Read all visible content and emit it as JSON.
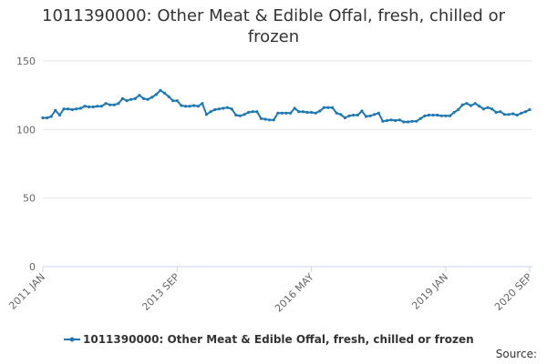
{
  "chart_data": {
    "type": "line",
    "title": "1011390000: Other Meat & Edible Offal, fresh, chilled or frozen",
    "series_name": "1011390000: Other Meat & Edible Offal, fresh, chilled or frozen",
    "source_label": "Source:",
    "x_start": "2011-01",
    "x_end": "2020-09",
    "x_ticks": [
      "2011 JAN",
      "2013 SEP",
      "2016 MAY",
      "2019 JAN",
      "2020 SEP"
    ],
    "y_ticks": [
      0,
      50,
      100,
      150
    ],
    "ylim": [
      0,
      150
    ],
    "grid": true,
    "legend_position": "bottom",
    "color": "#1f78b4",
    "series": [
      {
        "name": "1011390000: Other Meat & Edible Offal, fresh, chilled or frozen",
        "points": [
          [
            "2011-01",
            108.5
          ],
          [
            "2011-02",
            108.5
          ],
          [
            "2011-03",
            109.5
          ],
          [
            "2011-04",
            114
          ],
          [
            "2011-05",
            110.5
          ],
          [
            "2011-06",
            115
          ],
          [
            "2011-07",
            115
          ],
          [
            "2011-08",
            114.5
          ],
          [
            "2011-09",
            115
          ],
          [
            "2011-10",
            115.5
          ],
          [
            "2011-11",
            117
          ],
          [
            "2011-12",
            116.5
          ],
          [
            "2012-01",
            116.5
          ],
          [
            "2012-02",
            117
          ],
          [
            "2012-03",
            117
          ],
          [
            "2012-04",
            119
          ],
          [
            "2012-05",
            118
          ],
          [
            "2012-06",
            118
          ],
          [
            "2012-07",
            119
          ],
          [
            "2012-08",
            122.5
          ],
          [
            "2012-09",
            121
          ],
          [
            "2012-10",
            122
          ],
          [
            "2012-11",
            122.5
          ],
          [
            "2012-12",
            125
          ],
          [
            "2013-01",
            122.5
          ],
          [
            "2013-02",
            122
          ],
          [
            "2013-03",
            123.5
          ],
          [
            "2013-04",
            125.5
          ],
          [
            "2013-05",
            128.5
          ],
          [
            "2013-06",
            126.5
          ],
          [
            "2013-07",
            124
          ],
          [
            "2013-08",
            121
          ],
          [
            "2013-09",
            121
          ],
          [
            "2013-10",
            117.5
          ],
          [
            "2013-11",
            117
          ],
          [
            "2013-12",
            117
          ],
          [
            "2014-01",
            117.5
          ],
          [
            "2014-02",
            117
          ],
          [
            "2014-03",
            119
          ],
          [
            "2014-04",
            111
          ],
          [
            "2014-05",
            113
          ],
          [
            "2014-06",
            114.5
          ],
          [
            "2014-07",
            115
          ],
          [
            "2014-08",
            115.5
          ],
          [
            "2014-09",
            116
          ],
          [
            "2014-10",
            115
          ],
          [
            "2014-11",
            110.5
          ],
          [
            "2014-12",
            110
          ],
          [
            "2015-01",
            111
          ],
          [
            "2015-02",
            112.5
          ],
          [
            "2015-03",
            113
          ],
          [
            "2015-04",
            113
          ],
          [
            "2015-05",
            108
          ],
          [
            "2015-06",
            107.5
          ],
          [
            "2015-07",
            107
          ],
          [
            "2015-08",
            107
          ],
          [
            "2015-09",
            112
          ],
          [
            "2015-10",
            112
          ],
          [
            "2015-11",
            112
          ],
          [
            "2015-12",
            112
          ],
          [
            "2016-01",
            115.5
          ],
          [
            "2016-02",
            113
          ],
          [
            "2016-03",
            113
          ],
          [
            "2016-04",
            112.5
          ],
          [
            "2016-05",
            112.5
          ],
          [
            "2016-06",
            112
          ],
          [
            "2016-07",
            113.5
          ],
          [
            "2016-08",
            116
          ],
          [
            "2016-09",
            116
          ],
          [
            "2016-10",
            116
          ],
          [
            "2016-11",
            112
          ],
          [
            "2016-12",
            111
          ],
          [
            "2017-01",
            108.5
          ],
          [
            "2017-02",
            110
          ],
          [
            "2017-03",
            110.5
          ],
          [
            "2017-04",
            110.5
          ],
          [
            "2017-05",
            113.5
          ],
          [
            "2017-06",
            109.5
          ],
          [
            "2017-07",
            110
          ],
          [
            "2017-08",
            111
          ],
          [
            "2017-09",
            112
          ],
          [
            "2017-10",
            106
          ],
          [
            "2017-11",
            106.5
          ],
          [
            "2017-12",
            107
          ],
          [
            "2018-01",
            106.5
          ],
          [
            "2018-02",
            107
          ],
          [
            "2018-03",
            105.5
          ],
          [
            "2018-04",
            105.5
          ],
          [
            "2018-05",
            106
          ],
          [
            "2018-06",
            106
          ],
          [
            "2018-07",
            108
          ],
          [
            "2018-08",
            110
          ],
          [
            "2018-09",
            110.5
          ],
          [
            "2018-10",
            110.5
          ],
          [
            "2018-11",
            110.5
          ],
          [
            "2018-12",
            110
          ],
          [
            "2019-01",
            110
          ],
          [
            "2019-02",
            110
          ],
          [
            "2019-03",
            112.5
          ],
          [
            "2019-04",
            114.5
          ],
          [
            "2019-05",
            118
          ],
          [
            "2019-06",
            119
          ],
          [
            "2019-07",
            117.5
          ],
          [
            "2019-08",
            119
          ],
          [
            "2019-09",
            117
          ],
          [
            "2019-10",
            115
          ],
          [
            "2019-11",
            116
          ],
          [
            "2019-12",
            115
          ],
          [
            "2020-01",
            112.5
          ],
          [
            "2020-02",
            113
          ],
          [
            "2020-03",
            111
          ],
          [
            "2020-04",
            111
          ],
          [
            "2020-05",
            111.5
          ],
          [
            "2020-06",
            110.5
          ],
          [
            "2020-07",
            112
          ],
          [
            "2020-08",
            113
          ],
          [
            "2020-09",
            114.5
          ]
        ]
      }
    ]
  }
}
